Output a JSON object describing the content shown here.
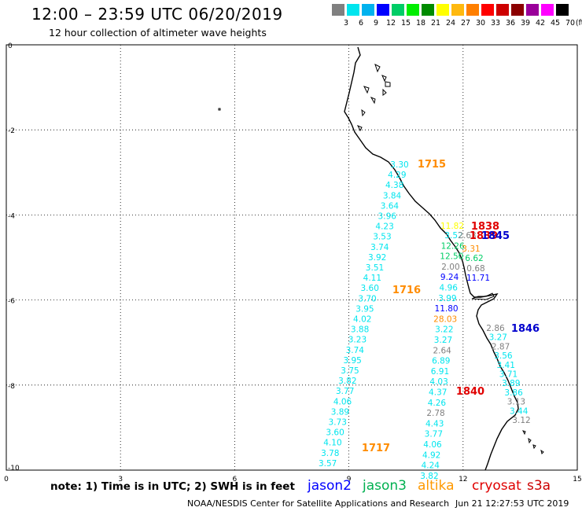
{
  "header": {
    "title": "12:00 – 23:59 UTC 06/20/2019",
    "subtitle": "12 hour collection of altimeter wave heights"
  },
  "color_scale": {
    "unit": "(ft)",
    "bins": [
      {
        "label": "3",
        "color": "#808080"
      },
      {
        "label": "6",
        "color": "#00e5ee"
      },
      {
        "label": "9",
        "color": "#00b2ee"
      },
      {
        "label": "12",
        "color": "#0000ff"
      },
      {
        "label": "15",
        "color": "#00cd66"
      },
      {
        "label": "18",
        "color": "#00ee00"
      },
      {
        "label": "21",
        "color": "#008b00"
      },
      {
        "label": "24",
        "color": "#ffff00"
      },
      {
        "label": "27",
        "color": "#ffb90f"
      },
      {
        "label": "30",
        "color": "#ff7f00"
      },
      {
        "label": "33",
        "color": "#ff0000"
      },
      {
        "label": "36",
        "color": "#cd0000"
      },
      {
        "label": "39",
        "color": "#8b0000"
      },
      {
        "label": "42",
        "color": "#9a009a"
      },
      {
        "label": "45",
        "color": "#ff00ff"
      },
      {
        "label": "70",
        "color": "#000000"
      }
    ]
  },
  "axes": {
    "x_ticks": [
      "0",
      "3",
      "6",
      "9",
      "12",
      "15"
    ],
    "y_ticks": [
      "0",
      "-2",
      "-4",
      "-6",
      "-8",
      "-10"
    ]
  },
  "colors": {
    "cyan": "#00e5ee",
    "gray": "#808080",
    "blue": "#0000ff",
    "green": "#00cd66",
    "yellow": "#ffff00",
    "orange": "#ff8c00",
    "red": "#e00000",
    "darkblue": "#0000cd"
  },
  "tracks": {
    "track_a": {
      "color": "cyan",
      "values": [
        "3.30",
        "4.29",
        "4.38",
        "3.84",
        "3.64",
        "3.96",
        "4.23",
        "3.53",
        "3.74",
        "3.92",
        "3.51",
        "4.11",
        "3.60",
        "3.70",
        "3.95",
        "4.02",
        "3.88",
        "3.23",
        "3.74",
        "3.95",
        "3.75",
        "3.82",
        "3.77",
        "4.06",
        "3.89",
        "3.73",
        "3.60",
        "4.10",
        "3.78",
        "3.57"
      ]
    },
    "track_b": {
      "values": [
        {
          "v": "3.52",
          "c": "cyan"
        },
        {
          "v": "12.26",
          "c": "green"
        },
        {
          "v": "12.50",
          "c": "green"
        },
        {
          "v": "2.00",
          "c": "gray"
        },
        {
          "v": "9.24",
          "c": "blue"
        },
        {
          "v": "4.96",
          "c": "cyan"
        },
        {
          "v": "3.99",
          "c": "cyan"
        },
        {
          "v": "11.80",
          "c": "blue"
        },
        {
          "v": "28.03",
          "c": "orange"
        },
        {
          "v": "3.22",
          "c": "cyan"
        },
        {
          "v": "3.27",
          "c": "cyan"
        },
        {
          "v": "2.64",
          "c": "gray"
        },
        {
          "v": "6.89",
          "c": "cyan"
        },
        {
          "v": "6.91",
          "c": "cyan"
        },
        {
          "v": "4.03",
          "c": "cyan"
        },
        {
          "v": "4.37",
          "c": "cyan"
        },
        {
          "v": "4.26",
          "c": "cyan"
        },
        {
          "v": "2.78",
          "c": "gray"
        },
        {
          "v": "4.43",
          "c": "cyan"
        },
        {
          "v": "3.77",
          "c": "cyan"
        },
        {
          "v": "4.06",
          "c": "cyan"
        },
        {
          "v": "4.92",
          "c": "cyan"
        },
        {
          "v": "4.24",
          "c": "cyan"
        },
        {
          "v": "3.82",
          "c": "cyan"
        }
      ]
    },
    "cluster": {
      "values": [
        {
          "v": "11.82",
          "c": "yellow"
        },
        {
          "v": "2.63",
          "c": "gray"
        },
        {
          "v": "3.31",
          "c": "orange"
        },
        {
          "v": "6.62",
          "c": "green"
        },
        {
          "v": "0.68",
          "c": "gray"
        },
        {
          "v": "11.71",
          "c": "blue"
        }
      ]
    },
    "track_c": {
      "values": [
        {
          "v": "2.86",
          "c": "gray"
        },
        {
          "v": "3.27",
          "c": "cyan"
        },
        {
          "v": "2.87",
          "c": "gray"
        },
        {
          "v": "3.56",
          "c": "cyan"
        },
        {
          "v": "3.41",
          "c": "cyan"
        },
        {
          "v": "3.71",
          "c": "cyan"
        },
        {
          "v": "3.89",
          "c": "cyan"
        },
        {
          "v": "3.86",
          "c": "cyan"
        },
        {
          "v": "3.13",
          "c": "gray"
        },
        {
          "v": "3.44",
          "c": "cyan"
        },
        {
          "v": "3.12",
          "c": "gray"
        }
      ]
    }
  },
  "pass_times": [
    {
      "label": "1715",
      "c": "orange"
    },
    {
      "label": "1716",
      "c": "orange"
    },
    {
      "label": "1717",
      "c": "orange"
    },
    {
      "label": "1838",
      "c": "red"
    },
    {
      "label": "1839",
      "c": "red"
    },
    {
      "label": "1845",
      "c": "darkblue"
    },
    {
      "label": "1846",
      "c": "darkblue"
    },
    {
      "label": "1840",
      "c": "red"
    }
  ],
  "note": "note: 1) Time is in UTC; 2) SWH is in feet",
  "satellites": [
    {
      "name": "jason2",
      "color": "#0000ff"
    },
    {
      "name": "jason3",
      "color": "#00b050"
    },
    {
      "name": "altika",
      "color": "#ff9900"
    },
    {
      "name": "cryosat",
      "color": "#e00000"
    },
    {
      "name": "s3a",
      "color": "#cc0000"
    }
  ],
  "footer": {
    "credit": "NOAA/NESDIS Center for Satellite Applications and Research",
    "generated": "Jun 21 12:27:53 UTC 2019"
  }
}
